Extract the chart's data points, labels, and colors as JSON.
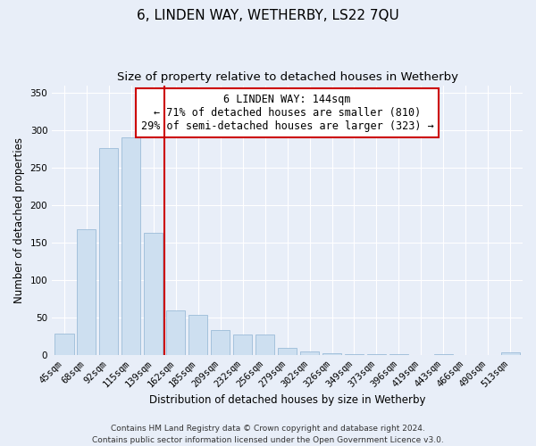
{
  "title": "6, LINDEN WAY, WETHERBY, LS22 7QU",
  "subtitle": "Size of property relative to detached houses in Wetherby",
  "xlabel": "Distribution of detached houses by size in Wetherby",
  "ylabel": "Number of detached properties",
  "bar_labels": [
    "45sqm",
    "68sqm",
    "92sqm",
    "115sqm",
    "139sqm",
    "162sqm",
    "185sqm",
    "209sqm",
    "232sqm",
    "256sqm",
    "279sqm",
    "302sqm",
    "326sqm",
    "349sqm",
    "373sqm",
    "396sqm",
    "419sqm",
    "443sqm",
    "466sqm",
    "490sqm",
    "513sqm"
  ],
  "bar_heights": [
    29,
    168,
    276,
    291,
    163,
    60,
    54,
    33,
    27,
    27,
    9,
    5,
    2,
    1,
    1,
    1,
    0,
    1,
    0,
    0,
    3
  ],
  "bar_color": "#cddff0",
  "bar_edge_color": "#9bbcd8",
  "marker_index": 4,
  "marker_color": "#cc0000",
  "annotation_text": "6 LINDEN WAY: 144sqm\n← 71% of detached houses are smaller (810)\n29% of semi-detached houses are larger (323) →",
  "annotation_box_facecolor": "#ffffff",
  "annotation_box_edgecolor": "#cc0000",
  "ylim": [
    0,
    360
  ],
  "yticks": [
    0,
    50,
    100,
    150,
    200,
    250,
    300,
    350
  ],
  "footer_line1": "Contains HM Land Registry data © Crown copyright and database right 2024.",
  "footer_line2": "Contains public sector information licensed under the Open Government Licence v3.0.",
  "background_color": "#e8eef8",
  "plot_bg_color": "#e8eef8",
  "grid_color": "#ffffff",
  "title_fontsize": 11,
  "subtitle_fontsize": 9.5,
  "axis_label_fontsize": 8.5,
  "tick_fontsize": 7.5,
  "annotation_fontsize": 8.5,
  "footer_fontsize": 6.5
}
